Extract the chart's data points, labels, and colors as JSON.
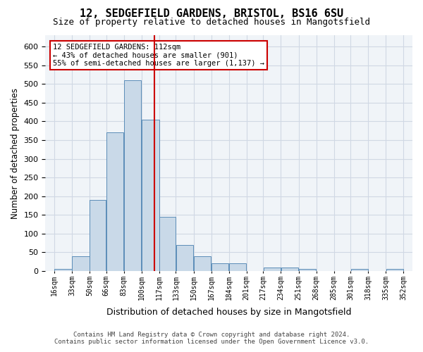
{
  "title_line1": "12, SEDGEFIELD GARDENS, BRISTOL, BS16 6SU",
  "title_line2": "Size of property relative to detached houses in Mangotsfield",
  "xlabel": "Distribution of detached houses by size in Mangotsfield",
  "ylabel": "Number of detached properties",
  "annotation_line1": "12 SEDGEFIELD GARDENS: 112sqm",
  "annotation_line2": "← 43% of detached houses are smaller (901)",
  "annotation_line3": "55% of semi-detached houses are larger (1,137) →",
  "property_size": 112,
  "footer_line1": "Contains HM Land Registry data © Crown copyright and database right 2024.",
  "footer_line2": "Contains public sector information licensed under the Open Government Licence v3.0.",
  "bar_color": "#c9d9e8",
  "bar_edge_color": "#5b8db8",
  "vline_color": "#cc0000",
  "annotation_box_color": "#cc0000",
  "bins": [
    16,
    33,
    50,
    66,
    83,
    100,
    117,
    133,
    150,
    167,
    184,
    201,
    217,
    234,
    251,
    268,
    285,
    301,
    318,
    335,
    352
  ],
  "bin_labels": [
    "16sqm",
    "33sqm",
    "50sqm",
    "66sqm",
    "83sqm",
    "100sqm",
    "117sqm",
    "133sqm",
    "150sqm",
    "167sqm",
    "184sqm",
    "201sqm",
    "217sqm",
    "234sqm",
    "251sqm",
    "268sqm",
    "285sqm",
    "301sqm",
    "318sqm",
    "335sqm",
    "352sqm"
  ],
  "heights": [
    5,
    40,
    190,
    370,
    510,
    405,
    145,
    70,
    40,
    20,
    20,
    0,
    10,
    10,
    5,
    0,
    0,
    5,
    0,
    5
  ],
  "ylim": [
    0,
    630
  ],
  "yticks": [
    0,
    50,
    100,
    150,
    200,
    250,
    300,
    350,
    400,
    450,
    500,
    550,
    600
  ],
  "grid_color": "#d0d8e4",
  "background_color": "#f0f4f8"
}
